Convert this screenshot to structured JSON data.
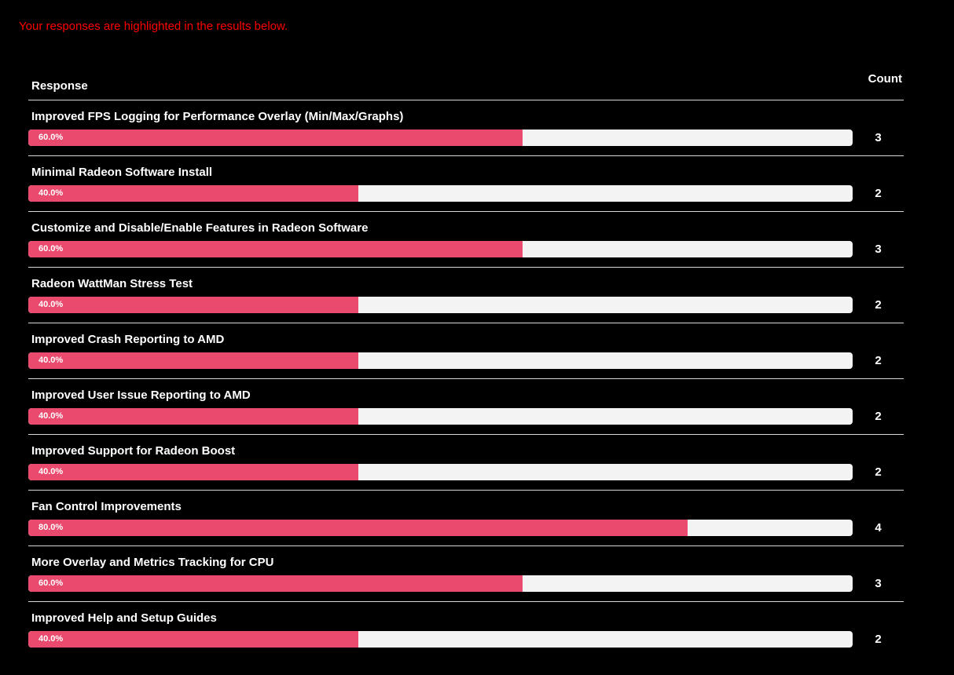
{
  "notice": {
    "text": "Your responses are highlighted in the results below."
  },
  "table": {
    "response_header": "Response",
    "count_header": "Count"
  },
  "chart_data": {
    "type": "bar",
    "orientation": "horizontal",
    "value_unit": "percent",
    "range": [
      0,
      100
    ],
    "legend": false,
    "rows": [
      {
        "label": "Improved FPS Logging for Performance Overlay (Min/Max/Graphs)",
        "percent": 60.0,
        "percent_label": "60.0%",
        "count": 3
      },
      {
        "label": "Minimal Radeon Software Install",
        "percent": 40.0,
        "percent_label": "40.0%",
        "count": 2
      },
      {
        "label": "Customize and Disable/Enable Features in Radeon Software",
        "percent": 60.0,
        "percent_label": "60.0%",
        "count": 3
      },
      {
        "label": "Radeon WattMan Stress Test",
        "percent": 40.0,
        "percent_label": "40.0%",
        "count": 2
      },
      {
        "label": "Improved Crash Reporting to AMD",
        "percent": 40.0,
        "percent_label": "40.0%",
        "count": 2
      },
      {
        "label": "Improved User Issue Reporting to AMD",
        "percent": 40.0,
        "percent_label": "40.0%",
        "count": 2
      },
      {
        "label": "Improved Support for Radeon Boost",
        "percent": 40.0,
        "percent_label": "40.0%",
        "count": 2
      },
      {
        "label": "Fan Control Improvements",
        "percent": 80.0,
        "percent_label": "80.0%",
        "count": 4
      },
      {
        "label": "More Overlay and Metrics Tracking for CPU",
        "percent": 60.0,
        "percent_label": "60.0%",
        "count": 3
      },
      {
        "label": "Improved Help and Setup Guides",
        "percent": 40.0,
        "percent_label": "40.0%",
        "count": 2
      }
    ]
  },
  "colors": {
    "background": "#000000",
    "notice_text": "#ff0000",
    "bar_fill": "#e94a6d",
    "bar_track": "#f3f3f3",
    "text": "#ffffff",
    "divider": "#d8d8d8"
  }
}
